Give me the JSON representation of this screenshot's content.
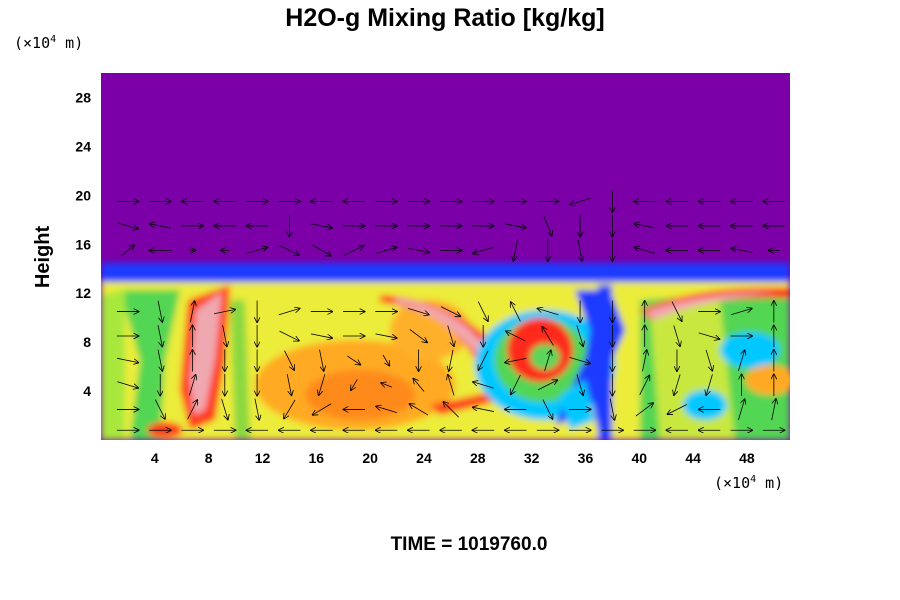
{
  "chart_data": {
    "type": "heatmap",
    "title": "H2O-g Mixing Ratio [kg/kg]",
    "ylabel": "Height",
    "y_unit_prefix": "(×10",
    "y_unit_exp": "4",
    "y_unit_suffix": " m)",
    "x_unit_prefix": "(×10",
    "x_unit_exp": "4",
    "x_unit_suffix": " m)",
    "xlim": [
      0,
      51.2
    ],
    "ylim": [
      0,
      30
    ],
    "x_ticks": [
      4,
      8,
      12,
      16,
      20,
      24,
      28,
      32,
      36,
      40,
      44,
      48
    ],
    "x_tick_labels": [
      "4",
      "8",
      "12",
      "16",
      "20",
      "24",
      "28",
      "32",
      "36",
      "40",
      "44",
      "48"
    ],
    "y_ticks": [
      4,
      8,
      12,
      16,
      20,
      24,
      28
    ],
    "y_tick_labels": [
      "4",
      "8",
      "12",
      "16",
      "20",
      "24",
      "28"
    ],
    "footer": "TIME = 1019760.0",
    "background_color": "#7b00a8",
    "colors": {
      "stratosphere": "#7b00a8",
      "low": "#1a3aff",
      "mid": "#00c8ff",
      "green": "#52d652",
      "yellow": "#f0f040",
      "orange": "#ffaa22",
      "high": "#ff2a1a",
      "peak": "#f0a8b0"
    },
    "field_features": [
      {
        "kind": "background",
        "x": [
          0,
          51.2
        ],
        "y": [
          0,
          30
        ],
        "level": "stratosphere"
      },
      {
        "kind": "moist_layer",
        "x": [
          0,
          51.2
        ],
        "y": [
          0,
          12.6
        ],
        "level": "yellow"
      },
      {
        "kind": "tropopause_band",
        "x": [
          0,
          51.2
        ],
        "y": [
          12.6,
          14.1
        ],
        "level": "low"
      },
      {
        "kind": "dry_intrusion",
        "x": [
          35.5,
          38.5
        ],
        "y": [
          0,
          13.5
        ],
        "level": "low"
      },
      {
        "kind": "dry_plume",
        "x": [
          4,
          7
        ],
        "y": [
          0,
          13
        ],
        "level": "green"
      },
      {
        "kind": "vortex",
        "center": [
          32,
          7.5
        ],
        "radius": 3.2,
        "level": "high"
      },
      {
        "kind": "vortex_core",
        "center": [
          19.5,
          4.5
        ],
        "radius": 6,
        "level": "orange"
      },
      {
        "kind": "filament",
        "x": [
          22,
          32
        ],
        "y": [
          5,
          12
        ],
        "level": "peak"
      }
    ],
    "vectors": [
      {
        "x": 2,
        "y": 19.5,
        "u": 1,
        "w": 0
      },
      {
        "x": 2,
        "y": 17.5,
        "u": 1,
        "w": -0.3
      },
      {
        "x": 2,
        "y": 15.5,
        "u": 0.6,
        "w": 0.5
      },
      {
        "x": 2,
        "y": 10.5,
        "u": 1,
        "w": 0
      },
      {
        "x": 2,
        "y": 8.5,
        "u": 1,
        "w": 0
      },
      {
        "x": 2,
        "y": 6.5,
        "u": 1,
        "w": -0.2
      },
      {
        "x": 2,
        "y": 4.5,
        "u": 1,
        "w": -0.3
      },
      {
        "x": 2,
        "y": 2.5,
        "u": 1,
        "w": 0
      },
      {
        "x": 2,
        "y": 0.8,
        "u": 1,
        "w": 0
      },
      {
        "x": 4.4,
        "y": 19.5,
        "u": 1,
        "w": 0
      },
      {
        "x": 4.4,
        "y": 17.5,
        "u": -1,
        "w": 0.2
      },
      {
        "x": 4.4,
        "y": 15.5,
        "u": -1,
        "w": 0
      },
      {
        "x": 4.4,
        "y": 10.5,
        "u": 0.2,
        "w": -1
      },
      {
        "x": 4.4,
        "y": 8.5,
        "u": 0.2,
        "w": -1
      },
      {
        "x": 4.4,
        "y": 6.5,
        "u": 0.2,
        "w": -1
      },
      {
        "x": 4.4,
        "y": 4.5,
        "u": 0,
        "w": -1
      },
      {
        "x": 4.4,
        "y": 2.5,
        "u": 0.5,
        "w": -1
      },
      {
        "x": 4.4,
        "y": 0.8,
        "u": 1,
        "w": 0
      },
      {
        "x": 6.8,
        "y": 19.5,
        "u": -1,
        "w": 0
      },
      {
        "x": 6.8,
        "y": 17.5,
        "u": 1,
        "w": 0
      },
      {
        "x": 6.8,
        "y": 15.5,
        "u": 0.3,
        "w": 0
      },
      {
        "x": 6.8,
        "y": 10.5,
        "u": 0.2,
        "w": 1
      },
      {
        "x": 6.8,
        "y": 8.5,
        "u": 0,
        "w": 1
      },
      {
        "x": 6.8,
        "y": 6.5,
        "u": 0,
        "w": 1
      },
      {
        "x": 6.8,
        "y": 4.5,
        "u": 0.3,
        "w": 1
      },
      {
        "x": 6.8,
        "y": 2.5,
        "u": 0.5,
        "w": 1
      },
      {
        "x": 6.8,
        "y": 0.8,
        "u": 1,
        "w": 0
      },
      {
        "x": 9.2,
        "y": 19.5,
        "u": -1,
        "w": 0
      },
      {
        "x": 9.2,
        "y": 17.5,
        "u": -1,
        "w": 0
      },
      {
        "x": 9.2,
        "y": 15.5,
        "u": -0.4,
        "w": 0
      },
      {
        "x": 9.2,
        "y": 10.5,
        "u": 1,
        "w": 0.2
      },
      {
        "x": 9.2,
        "y": 8.5,
        "u": 0.2,
        "w": -1
      },
      {
        "x": 9.2,
        "y": 6.5,
        "u": 0,
        "w": -1
      },
      {
        "x": 9.2,
        "y": 4.5,
        "u": 0,
        "w": -1
      },
      {
        "x": 9.2,
        "y": 2.5,
        "u": 0.3,
        "w": -1
      },
      {
        "x": 9.2,
        "y": 0.8,
        "u": 1,
        "w": 0
      },
      {
        "x": 11.6,
        "y": 19.5,
        "u": 1,
        "w": 0
      },
      {
        "x": 11.6,
        "y": 17.5,
        "u": -1,
        "w": 0
      },
      {
        "x": 11.6,
        "y": 15.5,
        "u": 1,
        "w": 0.3
      },
      {
        "x": 11.6,
        "y": 10.5,
        "u": 0,
        "w": -1
      },
      {
        "x": 11.6,
        "y": 8.5,
        "u": 0,
        "w": -1
      },
      {
        "x": 11.6,
        "y": 6.5,
        "u": 0,
        "w": -1
      },
      {
        "x": 11.6,
        "y": 4.5,
        "u": 0,
        "w": -1
      },
      {
        "x": 11.6,
        "y": 2.5,
        "u": 0.2,
        "w": -1
      },
      {
        "x": 11.6,
        "y": 0.8,
        "u": -1,
        "w": 0
      },
      {
        "x": 14,
        "y": 19.5,
        "u": 1,
        "w": 0
      },
      {
        "x": 14,
        "y": 17.5,
        "u": 0,
        "w": -1
      },
      {
        "x": 14,
        "y": 15.5,
        "u": 1,
        "w": -0.5
      },
      {
        "x": 14,
        "y": 10.5,
        "u": 1,
        "w": 0.3
      },
      {
        "x": 14,
        "y": 8.5,
        "u": 1,
        "w": -0.5
      },
      {
        "x": 14,
        "y": 6.5,
        "u": 0.5,
        "w": -1
      },
      {
        "x": 14,
        "y": 4.5,
        "u": 0.2,
        "w": -1
      },
      {
        "x": 14,
        "y": 2.5,
        "u": -0.6,
        "w": -1
      },
      {
        "x": 14,
        "y": 0.8,
        "u": -1,
        "w": 0
      },
      {
        "x": 16.4,
        "y": 19.5,
        "u": -1,
        "w": 0
      },
      {
        "x": 16.4,
        "y": 17.5,
        "u": 1,
        "w": -0.2
      },
      {
        "x": 16.4,
        "y": 15.5,
        "u": 1,
        "w": -0.6
      },
      {
        "x": 16.4,
        "y": 10.5,
        "u": 1,
        "w": 0
      },
      {
        "x": 16.4,
        "y": 8.5,
        "u": 1,
        "w": -0.2
      },
      {
        "x": 16.4,
        "y": 6.5,
        "u": 0.2,
        "w": -1
      },
      {
        "x": 16.4,
        "y": 4.5,
        "u": -0.3,
        "w": -1
      },
      {
        "x": 16.4,
        "y": 2.5,
        "u": -1,
        "w": -0.6
      },
      {
        "x": 16.4,
        "y": 0.8,
        "u": -1,
        "w": 0
      },
      {
        "x": 18.8,
        "y": 19.5,
        "u": -1,
        "w": 0
      },
      {
        "x": 18.8,
        "y": 17.5,
        "u": 1,
        "w": 0
      },
      {
        "x": 18.8,
        "y": 15.5,
        "u": 1,
        "w": 0.5
      },
      {
        "x": 18.8,
        "y": 10.5,
        "u": 1,
        "w": 0
      },
      {
        "x": 18.8,
        "y": 8.5,
        "u": 1,
        "w": 0
      },
      {
        "x": 18.8,
        "y": 6.5,
        "u": 0.6,
        "w": -0.4
      },
      {
        "x": 18.8,
        "y": 4.5,
        "u": -0.3,
        "w": -0.5
      },
      {
        "x": 18.8,
        "y": 2.5,
        "u": -1,
        "w": 0
      },
      {
        "x": 18.8,
        "y": 0.8,
        "u": -1,
        "w": 0
      },
      {
        "x": 21.2,
        "y": 19.5,
        "u": 1,
        "w": 0
      },
      {
        "x": 21.2,
        "y": 17.5,
        "u": 1,
        "w": 0
      },
      {
        "x": 21.2,
        "y": 15.5,
        "u": 1,
        "w": 0.3
      },
      {
        "x": 21.2,
        "y": 10.5,
        "u": 1,
        "w": 0
      },
      {
        "x": 21.2,
        "y": 8.5,
        "u": 1,
        "w": -0.2
      },
      {
        "x": 21.2,
        "y": 6.5,
        "u": 0.3,
        "w": -0.5
      },
      {
        "x": 21.2,
        "y": 4.5,
        "u": -0.5,
        "w": 0.2
      },
      {
        "x": 21.2,
        "y": 2.5,
        "u": -1,
        "w": 0.3
      },
      {
        "x": 21.2,
        "y": 0.8,
        "u": -1,
        "w": 0
      },
      {
        "x": 23.6,
        "y": 19.5,
        "u": 1,
        "w": 0
      },
      {
        "x": 23.6,
        "y": 17.5,
        "u": 1,
        "w": 0
      },
      {
        "x": 23.6,
        "y": 15.5,
        "u": 1,
        "w": -0.2
      },
      {
        "x": 23.6,
        "y": 10.5,
        "u": 1,
        "w": -0.3
      },
      {
        "x": 23.6,
        "y": 8.5,
        "u": 0.8,
        "w": -0.6
      },
      {
        "x": 23.6,
        "y": 6.5,
        "u": 0,
        "w": -1
      },
      {
        "x": 23.6,
        "y": 4.5,
        "u": -0.5,
        "w": 0.6
      },
      {
        "x": 23.6,
        "y": 2.5,
        "u": -1,
        "w": 0.6
      },
      {
        "x": 23.6,
        "y": 0.8,
        "u": -1,
        "w": 0
      },
      {
        "x": 26,
        "y": 19.5,
        "u": 1,
        "w": 0
      },
      {
        "x": 26,
        "y": 17.5,
        "u": 1,
        "w": 0
      },
      {
        "x": 26,
        "y": 15.5,
        "u": 1,
        "w": 0
      },
      {
        "x": 26,
        "y": 10.5,
        "u": 1,
        "w": -0.5
      },
      {
        "x": 26,
        "y": 8.5,
        "u": 0.3,
        "w": -1
      },
      {
        "x": 26,
        "y": 6.5,
        "u": -0.2,
        "w": -1
      },
      {
        "x": 26,
        "y": 4.5,
        "u": -0.3,
        "w": 1
      },
      {
        "x": 26,
        "y": 2.5,
        "u": -0.8,
        "w": 0.8
      },
      {
        "x": 26,
        "y": 0.8,
        "u": -1,
        "w": 0
      },
      {
        "x": 28.4,
        "y": 19.5,
        "u": 1,
        "w": 0
      },
      {
        "x": 28.4,
        "y": 17.5,
        "u": 1,
        "w": 0
      },
      {
        "x": 28.4,
        "y": 15.5,
        "u": -1,
        "w": -0.3
      },
      {
        "x": 28.4,
        "y": 10.5,
        "u": 0.5,
        "w": -1
      },
      {
        "x": 28.4,
        "y": 8.5,
        "u": 0,
        "w": -1
      },
      {
        "x": 28.4,
        "y": 6.5,
        "u": -0.5,
        "w": -1
      },
      {
        "x": 28.4,
        "y": 4.5,
        "u": -1,
        "w": 0.3
      },
      {
        "x": 28.4,
        "y": 2.5,
        "u": -1,
        "w": 0.2
      },
      {
        "x": 28.4,
        "y": 0.8,
        "u": -1,
        "w": 0
      },
      {
        "x": 30.8,
        "y": 19.5,
        "u": 1,
        "w": 0
      },
      {
        "x": 30.8,
        "y": 17.5,
        "u": 1,
        "w": -0.2
      },
      {
        "x": 30.8,
        "y": 15.5,
        "u": -0.2,
        "w": -1
      },
      {
        "x": 30.8,
        "y": 10.5,
        "u": -0.5,
        "w": 1
      },
      {
        "x": 30.8,
        "y": 8.5,
        "u": -1,
        "w": 0.5
      },
      {
        "x": 30.8,
        "y": 6.5,
        "u": -1,
        "w": -0.2
      },
      {
        "x": 30.8,
        "y": 4.5,
        "u": -0.5,
        "w": -1
      },
      {
        "x": 30.8,
        "y": 2.5,
        "u": -1,
        "w": 0
      },
      {
        "x": 30.8,
        "y": 0.8,
        "u": -1,
        "w": 0
      },
      {
        "x": 33.2,
        "y": 19.5,
        "u": 1,
        "w": 0
      },
      {
        "x": 33.2,
        "y": 17.5,
        "u": 0.4,
        "w": -1
      },
      {
        "x": 33.2,
        "y": 15.5,
        "u": 0,
        "w": -1
      },
      {
        "x": 33.2,
        "y": 10.5,
        "u": -1,
        "w": 0.3
      },
      {
        "x": 33.2,
        "y": 8.5,
        "u": -0.6,
        "w": 1
      },
      {
        "x": 33.2,
        "y": 6.5,
        "u": 0.3,
        "w": 1
      },
      {
        "x": 33.2,
        "y": 4.5,
        "u": 1,
        "w": 0.5
      },
      {
        "x": 33.2,
        "y": 2.5,
        "u": 0.5,
        "w": -1
      },
      {
        "x": 33.2,
        "y": 0.8,
        "u": 1,
        "w": 0
      },
      {
        "x": 35.6,
        "y": 19.5,
        "u": -1,
        "w": -0.3
      },
      {
        "x": 35.6,
        "y": 17.5,
        "u": 0,
        "w": -1
      },
      {
        "x": 35.6,
        "y": 15.5,
        "u": 0.2,
        "w": -1
      },
      {
        "x": 35.6,
        "y": 10.5,
        "u": 0,
        "w": -1
      },
      {
        "x": 35.6,
        "y": 8.5,
        "u": 0.3,
        "w": -1
      },
      {
        "x": 35.6,
        "y": 6.5,
        "u": 1,
        "w": -0.3
      },
      {
        "x": 35.6,
        "y": 4.5,
        "u": 0.3,
        "w": -1
      },
      {
        "x": 35.6,
        "y": 2.5,
        "u": 1,
        "w": 0
      },
      {
        "x": 35.6,
        "y": 0.8,
        "u": 1,
        "w": 0
      },
      {
        "x": 38,
        "y": 19.5,
        "u": 0,
        "w": -1
      },
      {
        "x": 38,
        "y": 17.5,
        "u": 0,
        "w": -1
      },
      {
        "x": 38,
        "y": 15.5,
        "u": 0,
        "w": -1
      },
      {
        "x": 38,
        "y": 10.5,
        "u": 0,
        "w": -1
      },
      {
        "x": 38,
        "y": 8.5,
        "u": 0,
        "w": -1
      },
      {
        "x": 38,
        "y": 6.5,
        "u": 0,
        "w": -1
      },
      {
        "x": 38,
        "y": 4.5,
        "u": 0,
        "w": -1
      },
      {
        "x": 38,
        "y": 2.5,
        "u": 0.2,
        "w": -1
      },
      {
        "x": 38,
        "y": 0.8,
        "u": 1,
        "w": 0
      },
      {
        "x": 40.4,
        "y": 19.5,
        "u": -1,
        "w": 0
      },
      {
        "x": 40.4,
        "y": 17.5,
        "u": -1,
        "w": 0.2
      },
      {
        "x": 40.4,
        "y": 15.5,
        "u": -1,
        "w": 0.3
      },
      {
        "x": 40.4,
        "y": 10.5,
        "u": 0,
        "w": 1
      },
      {
        "x": 40.4,
        "y": 8.5,
        "u": 0,
        "w": 1
      },
      {
        "x": 40.4,
        "y": 6.5,
        "u": 0.2,
        "w": 1
      },
      {
        "x": 40.4,
        "y": 4.5,
        "u": 0.5,
        "w": 1
      },
      {
        "x": 40.4,
        "y": 2.5,
        "u": 0.8,
        "w": 0.6
      },
      {
        "x": 40.4,
        "y": 0.8,
        "u": 1,
        "w": 0
      },
      {
        "x": 42.8,
        "y": 19.5,
        "u": -1,
        "w": 0
      },
      {
        "x": 42.8,
        "y": 17.5,
        "u": -1,
        "w": 0
      },
      {
        "x": 42.8,
        "y": 15.5,
        "u": -1,
        "w": 0
      },
      {
        "x": 42.8,
        "y": 10.5,
        "u": 0.5,
        "w": -1
      },
      {
        "x": 42.8,
        "y": 8.5,
        "u": 0.3,
        "w": -1
      },
      {
        "x": 42.8,
        "y": 6.5,
        "u": 0,
        "w": -1
      },
      {
        "x": 42.8,
        "y": 4.5,
        "u": -0.3,
        "w": -1
      },
      {
        "x": 42.8,
        "y": 2.5,
        "u": -1,
        "w": -0.5
      },
      {
        "x": 42.8,
        "y": 0.8,
        "u": -1,
        "w": 0
      },
      {
        "x": 45.2,
        "y": 19.5,
        "u": -1,
        "w": 0
      },
      {
        "x": 45.2,
        "y": 17.5,
        "u": -1,
        "w": 0
      },
      {
        "x": 45.2,
        "y": 15.5,
        "u": -1,
        "w": 0
      },
      {
        "x": 45.2,
        "y": 10.5,
        "u": 1,
        "w": 0
      },
      {
        "x": 45.2,
        "y": 8.5,
        "u": 1,
        "w": -0.3
      },
      {
        "x": 45.2,
        "y": 6.5,
        "u": 0.3,
        "w": -1
      },
      {
        "x": 45.2,
        "y": 4.5,
        "u": -0.3,
        "w": -1
      },
      {
        "x": 45.2,
        "y": 2.5,
        "u": -1,
        "w": 0
      },
      {
        "x": 45.2,
        "y": 0.8,
        "u": -1,
        "w": 0
      },
      {
        "x": 47.6,
        "y": 19.5,
        "u": -1,
        "w": 0
      },
      {
        "x": 47.6,
        "y": 17.5,
        "u": -1,
        "w": 0
      },
      {
        "x": 47.6,
        "y": 15.5,
        "u": -1,
        "w": 0.2
      },
      {
        "x": 47.6,
        "y": 10.5,
        "u": 1,
        "w": 0.3
      },
      {
        "x": 47.6,
        "y": 8.5,
        "u": 1,
        "w": 0
      },
      {
        "x": 47.6,
        "y": 6.5,
        "u": 0.3,
        "w": 1
      },
      {
        "x": 47.6,
        "y": 4.5,
        "u": 0,
        "w": 1
      },
      {
        "x": 47.6,
        "y": 2.5,
        "u": 0.3,
        "w": 1
      },
      {
        "x": 47.6,
        "y": 0.8,
        "u": 1,
        "w": 0
      },
      {
        "x": 50,
        "y": 19.5,
        "u": -1,
        "w": 0
      },
      {
        "x": 50,
        "y": 17.5,
        "u": -1,
        "w": 0
      },
      {
        "x": 50,
        "y": 15.5,
        "u": -0.5,
        "w": 0
      },
      {
        "x": 50,
        "y": 10.5,
        "u": 0,
        "w": 1
      },
      {
        "x": 50,
        "y": 8.5,
        "u": 0,
        "w": 1
      },
      {
        "x": 50,
        "y": 6.5,
        "u": 0,
        "w": 1
      },
      {
        "x": 50,
        "y": 4.5,
        "u": 0,
        "w": 1
      },
      {
        "x": 50,
        "y": 2.5,
        "u": 0.2,
        "w": 1
      },
      {
        "x": 50,
        "y": 0.8,
        "u": 1,
        "w": 0
      }
    ]
  }
}
